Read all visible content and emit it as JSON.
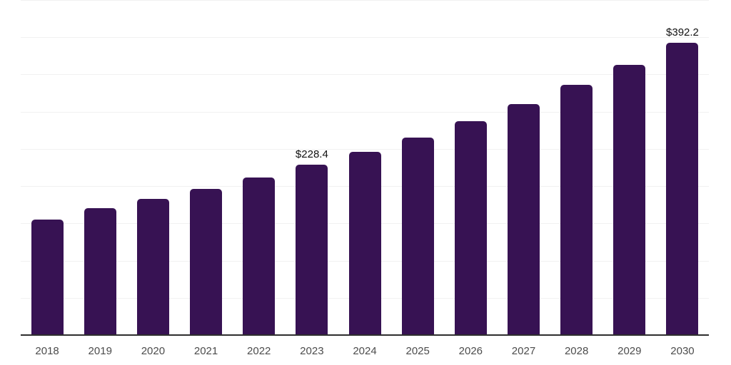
{
  "chart_data": {
    "type": "bar",
    "title": "",
    "xlabel": "",
    "ylabel": "",
    "categories": [
      "2018",
      "2019",
      "2020",
      "2021",
      "2022",
      "2023",
      "2024",
      "2025",
      "2026",
      "2027",
      "2028",
      "2029",
      "2030"
    ],
    "values": [
      155.3,
      170.0,
      183.0,
      196.6,
      211.7,
      228.4,
      246.5,
      265.6,
      287.2,
      310.2,
      335.8,
      363.2,
      392.2
    ],
    "data_labels": [
      null,
      null,
      null,
      null,
      null,
      "$228.4",
      null,
      null,
      null,
      null,
      null,
      null,
      "$392.2"
    ],
    "value_prefix": "$",
    "ylim": [
      0,
      450
    ],
    "gridline_interval": 50,
    "grid": true,
    "legend": false,
    "y_tick_labels_visible": false,
    "colors": {
      "background": "#ffffff",
      "bar": "#371253",
      "gridline": "#f1f1f1",
      "axis_line": "#2e2e2e",
      "tick_label": "#4c4c4c",
      "data_label": "#111111"
    }
  }
}
